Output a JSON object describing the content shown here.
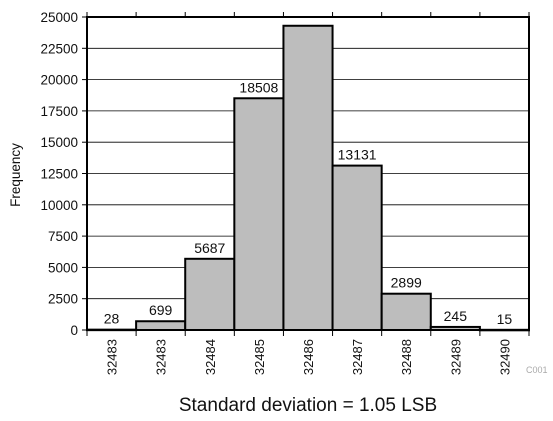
{
  "chart_data": {
    "type": "bar",
    "categories": [
      "32483",
      "32483",
      "32484",
      "32485",
      "32486",
      "32487",
      "32488",
      "32489",
      "32490"
    ],
    "values": [
      28,
      699,
      5687,
      18508,
      24300,
      13131,
      2899,
      245,
      15
    ],
    "data_labels": [
      "28",
      "699",
      "5687",
      "18508",
      "",
      "13131",
      "2899",
      "245",
      "15"
    ],
    "ylabel": "Frequency",
    "xlabel": "Standard deviation = 1.05 LSB",
    "ylim": [
      0,
      25000
    ],
    "yticks": [
      "0",
      "2500",
      "5000",
      "7500",
      "10000",
      "12500",
      "15000",
      "17500",
      "20000",
      "22500",
      "25000"
    ],
    "grid": true,
    "legend": "none",
    "colors": {
      "bar_fill": "#bdbdbd",
      "bar_stroke": "#000000",
      "grid": "#000000"
    }
  },
  "figure_code": "C001"
}
